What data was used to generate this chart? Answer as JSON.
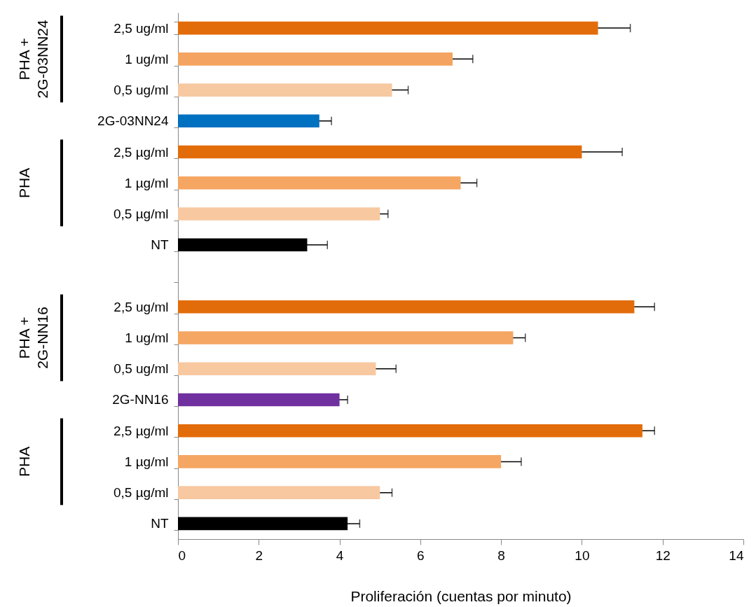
{
  "chart_data": {
    "type": "bar",
    "orientation": "horizontal",
    "xlabel": "Proliferación (cuentas por minuto)",
    "categories": [
      "2,5 ug/ml",
      "1 ug/ml",
      "0,5 ug/ml",
      "2G-03NN24",
      "2,5 µg/ml",
      "1 µg/ml",
      "0,5 µg/ml",
      "NT",
      null,
      "2,5 ug/ml",
      "1 ug/ml",
      "0,5 ug/ml",
      "2G-NN16",
      "2,5 µg/ml",
      "1 µg/ml",
      "0,5 µg/ml",
      "NT"
    ],
    "values": [
      10.4,
      6.8,
      5.3,
      3.5,
      10.0,
      7.0,
      5.0,
      3.2,
      null,
      11.3,
      8.3,
      4.9,
      4.0,
      11.5,
      8.0,
      5.0,
      4.2
    ],
    "errors": [
      0.8,
      0.5,
      0.4,
      0.3,
      1.0,
      0.4,
      0.2,
      0.5,
      null,
      0.5,
      0.3,
      0.5,
      0.2,
      0.3,
      0.5,
      0.3,
      0.3
    ],
    "colors": [
      "#e36c0a",
      "#f4a460",
      "#f6c9a1",
      "#0070c0",
      "#e36c0a",
      "#f5a662",
      "#f8c8a0",
      "#000000",
      "#ffffff",
      "#e36c0a",
      "#f5a662",
      "#f8c8a0",
      "#7030a0",
      "#e36c0a",
      "#f5a662",
      "#f8c8a0",
      "#000000"
    ],
    "xlim": [
      0,
      14
    ],
    "xticks": [
      0,
      2,
      4,
      6,
      8,
      10,
      12,
      14
    ],
    "grid": false,
    "annotations": [
      "PHA +\n2G-03NN24",
      "PHA",
      "PHA +\n2G-NN16",
      "PHA"
    ]
  }
}
